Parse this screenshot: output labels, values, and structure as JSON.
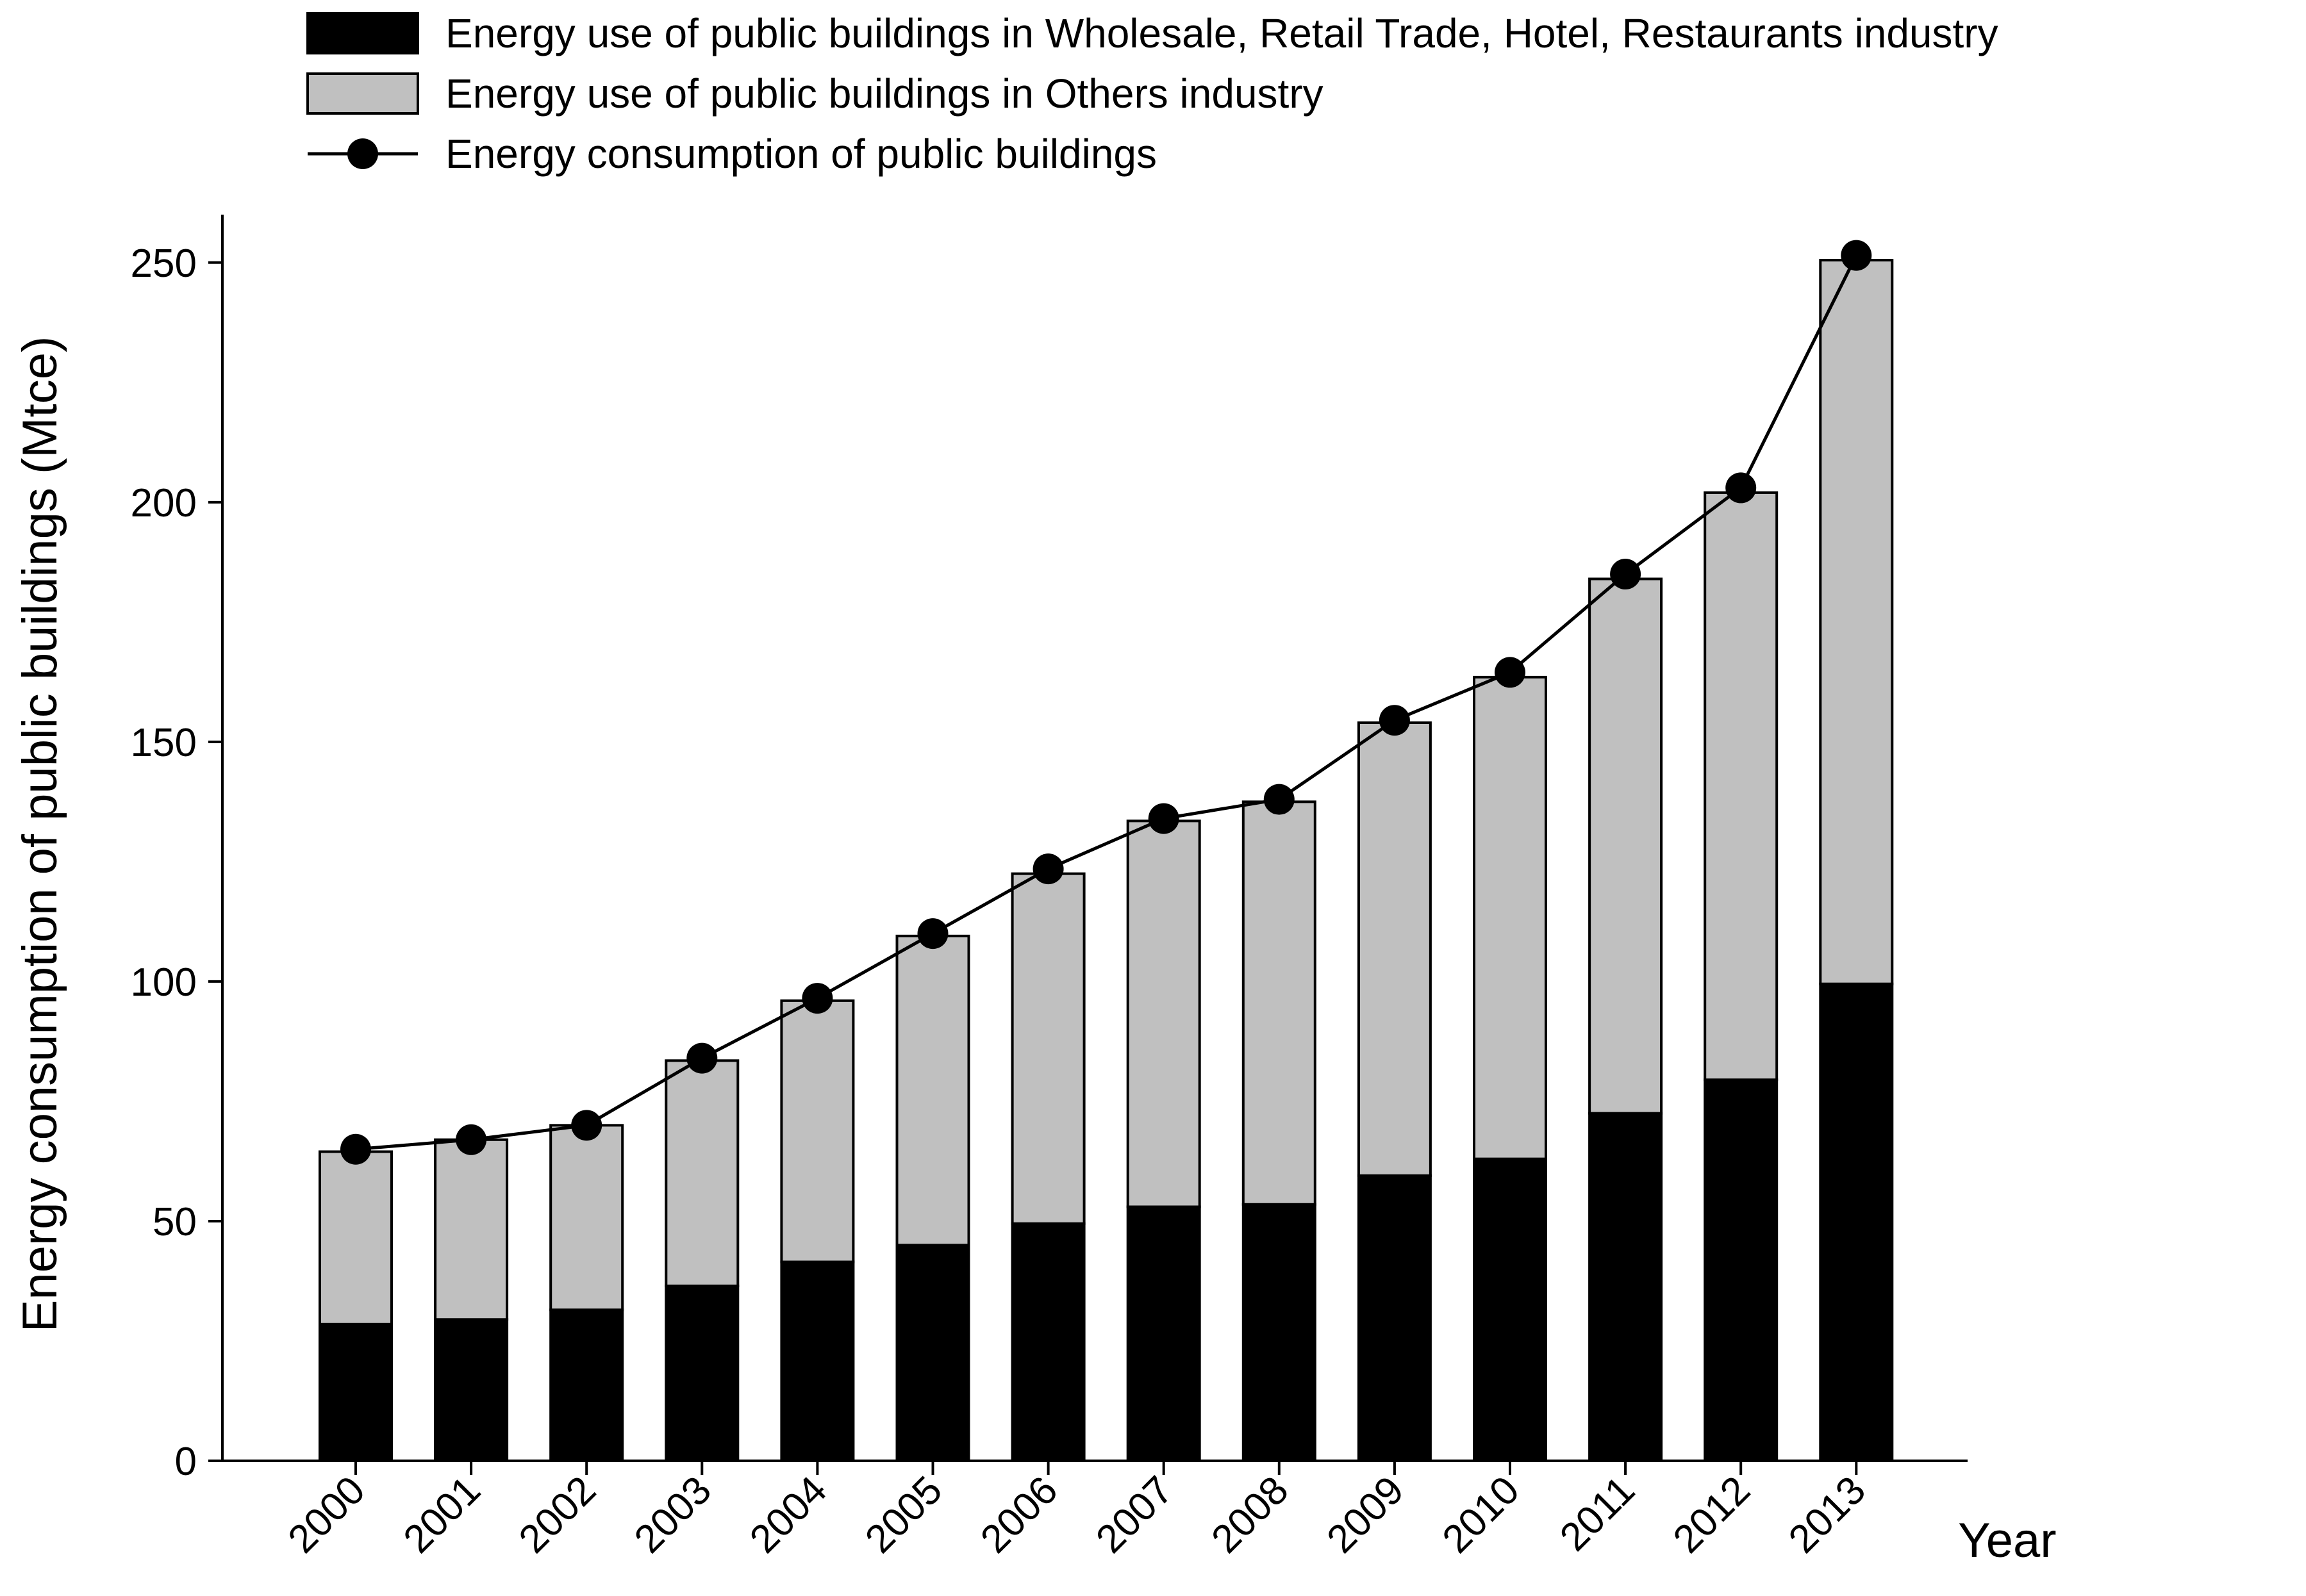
{
  "chart_data": {
    "type": "bar",
    "stacked": true,
    "title": "",
    "xlabel": "Year",
    "ylabel": "Energy consumption of public buildings (Mtce)",
    "ylim": [
      0,
      260
    ],
    "yticks": [
      0,
      50,
      100,
      150,
      200,
      250
    ],
    "categories": [
      "2000",
      "2001",
      "2002",
      "2003",
      "2004",
      "2005",
      "2006",
      "2007",
      "2008",
      "2009",
      "2010",
      "2011",
      "2012",
      "2013"
    ],
    "series": [
      {
        "name": "Energy use of public buildings in Wholesale, Retail Trade, Hotel, Restaurants industry",
        "kind": "bar",
        "color": "#000000",
        "values": [
          28.5,
          29.5,
          31.5,
          36.5,
          41.5,
          45,
          49.5,
          53,
          53.5,
          59.5,
          63,
          72.5,
          79.5,
          99.5
        ]
      },
      {
        "name": "Energy use of public buildings in Others industry",
        "kind": "bar",
        "color": "#c0c0c0",
        "values": [
          36,
          37.5,
          38.5,
          47,
          54.5,
          64.5,
          73,
          80.5,
          84,
          94.5,
          100.5,
          111.5,
          122.5,
          151
        ]
      },
      {
        "name": "Energy consumption of public buildings",
        "kind": "line",
        "color": "#000000",
        "values": [
          65,
          67,
          70,
          84,
          96.5,
          110,
          123.5,
          134,
          138,
          154.5,
          164.5,
          185,
          203,
          251.5
        ]
      }
    ],
    "legend_position": "top"
  }
}
